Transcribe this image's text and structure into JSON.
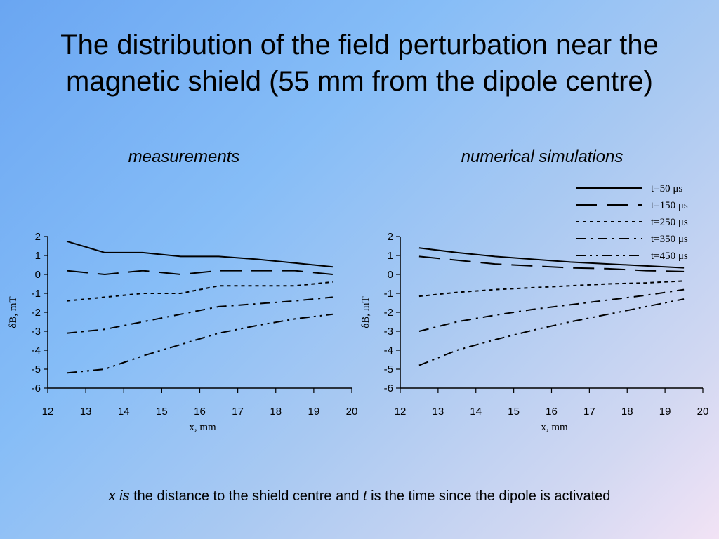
{
  "slide": {
    "title_line1": "The distribution of the field perturbation near the",
    "title_line2": "magnetic shield (55 mm from the dipole centre)",
    "left_heading": "measurements",
    "right_heading": "numerical simulations",
    "caption_x": "x is",
    "caption_mid": " the distance to the shield centre and ",
    "caption_t": "t",
    "caption_end": " is the time since the dipole is activated"
  },
  "chart_data": [
    {
      "type": "line",
      "title": "measurements",
      "xlabel": "x, mm",
      "ylabel": "δB, mT",
      "xlim": [
        12,
        20
      ],
      "ylim": [
        -6,
        2
      ],
      "xticks": [
        12,
        13,
        14,
        15,
        16,
        17,
        18,
        19,
        20
      ],
      "yticks": [
        2,
        1,
        0,
        -1,
        -2,
        -3,
        -4,
        -5,
        -6
      ],
      "grid": false,
      "series": [
        {
          "style": "solid",
          "x": [
            12.5,
            13.5,
            14.5,
            15.5,
            16.5,
            17.5,
            18.5,
            19.5
          ],
          "y": [
            1.75,
            1.15,
            1.15,
            0.95,
            0.95,
            0.8,
            0.6,
            0.4
          ]
        },
        {
          "style": "longdash",
          "x": [
            12.5,
            13.5,
            14.5,
            15.5,
            16.5,
            17.5,
            18.5,
            19.5
          ],
          "y": [
            0.2,
            0.0,
            0.2,
            0.0,
            0.2,
            0.2,
            0.2,
            0.0
          ]
        },
        {
          "style": "shortdash",
          "x": [
            12.5,
            13.5,
            14.5,
            15.5,
            16.5,
            17.5,
            18.5,
            19.5
          ],
          "y": [
            -1.4,
            -1.2,
            -1.0,
            -1.0,
            -0.6,
            -0.6,
            -0.6,
            -0.4
          ]
        },
        {
          "style": "dashdot",
          "x": [
            12.5,
            13.5,
            14.5,
            15.5,
            16.5,
            17.5,
            18.5,
            19.5
          ],
          "y": [
            -3.1,
            -2.9,
            -2.5,
            -2.1,
            -1.7,
            -1.55,
            -1.4,
            -1.2
          ]
        },
        {
          "style": "dashdotdot",
          "x": [
            12.5,
            13.5,
            14.5,
            15.5,
            16.5,
            17.5,
            18.5,
            19.5
          ],
          "y": [
            -5.2,
            -5.0,
            -4.3,
            -3.7,
            -3.1,
            -2.7,
            -2.35,
            -2.1
          ]
        }
      ]
    },
    {
      "type": "line",
      "title": "numerical simulations",
      "xlabel": "x, mm",
      "ylabel": "δB, mT",
      "xlim": [
        12,
        20
      ],
      "ylim": [
        -6,
        2
      ],
      "xticks": [
        12,
        13,
        14,
        15,
        16,
        17,
        18,
        19,
        20
      ],
      "yticks": [
        2,
        1,
        0,
        -1,
        -2,
        -3,
        -4,
        -5,
        -6
      ],
      "grid": false,
      "legend_position": "top-right",
      "series": [
        {
          "name": "t=50 μs",
          "style": "solid",
          "x": [
            12.5,
            13.5,
            14.5,
            15.5,
            16.5,
            17.5,
            18.5,
            19.5
          ],
          "y": [
            1.4,
            1.15,
            0.95,
            0.8,
            0.65,
            0.55,
            0.45,
            0.35
          ]
        },
        {
          "name": "t=150 μs",
          "style": "longdash",
          "x": [
            12.5,
            13.5,
            14.5,
            15.5,
            16.5,
            17.5,
            18.5,
            19.5
          ],
          "y": [
            0.95,
            0.75,
            0.55,
            0.45,
            0.35,
            0.3,
            0.2,
            0.15
          ]
        },
        {
          "name": "t=250 μs",
          "style": "shortdash",
          "x": [
            12.5,
            13.5,
            14.5,
            15.5,
            16.5,
            17.5,
            18.5,
            19.5
          ],
          "y": [
            -1.15,
            -0.95,
            -0.8,
            -0.7,
            -0.6,
            -0.5,
            -0.45,
            -0.35
          ]
        },
        {
          "name": "t=350 μs",
          "style": "dashdot",
          "x": [
            12.5,
            13.5,
            14.5,
            15.5,
            16.5,
            17.5,
            18.5,
            19.5
          ],
          "y": [
            -3.0,
            -2.5,
            -2.15,
            -1.85,
            -1.6,
            -1.35,
            -1.1,
            -0.8
          ]
        },
        {
          "name": "t=450 μs",
          "style": "dashdotdot",
          "x": [
            12.5,
            13.5,
            14.5,
            15.5,
            16.5,
            17.5,
            18.5,
            19.5
          ],
          "y": [
            -4.8,
            -4.0,
            -3.45,
            -2.95,
            -2.5,
            -2.1,
            -1.7,
            -1.3
          ]
        }
      ]
    }
  ]
}
